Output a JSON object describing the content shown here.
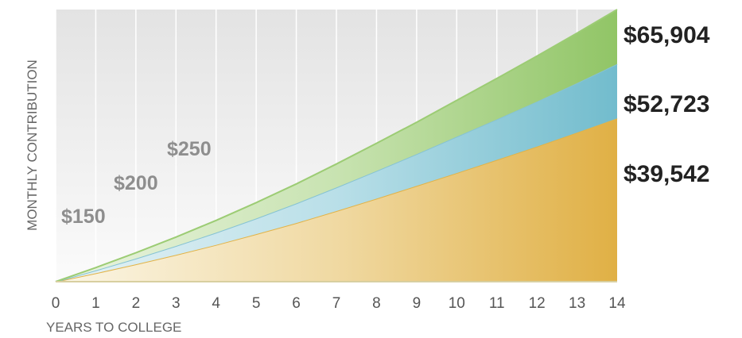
{
  "chart_data": {
    "type": "area",
    "xlabel": "YEARS TO COLLEGE",
    "ylabel": "MONTHLY CONTRIBUTION",
    "x": [
      0,
      1,
      2,
      3,
      4,
      5,
      6,
      7,
      8,
      9,
      10,
      11,
      12,
      13,
      14
    ],
    "xlim": [
      0,
      14
    ],
    "ylim": [
      0,
      65904
    ],
    "grid": "vertical",
    "series": [
      {
        "name": "$150",
        "color": "#e2b347",
        "values": [
          0,
          2040,
          4200,
          6480,
          8900,
          11500,
          14200,
          17100,
          20100,
          23200,
          26300,
          29500,
          32700,
          36100,
          39542
        ],
        "end_label": "$39,542"
      },
      {
        "name": "$200",
        "color": "#86c3d3",
        "values": [
          0,
          2720,
          5600,
          8640,
          11860,
          15300,
          18950,
          22800,
          26800,
          30900,
          35100,
          39300,
          43600,
          48100,
          52723
        ],
        "end_label": "$52,723"
      },
      {
        "name": "$250",
        "color": "#9ccc74",
        "values": [
          0,
          3400,
          7000,
          10800,
          14830,
          19130,
          23680,
          28500,
          33500,
          38600,
          43900,
          49200,
          54600,
          60200,
          65904
        ],
        "end_label": "$65,904"
      }
    ]
  }
}
